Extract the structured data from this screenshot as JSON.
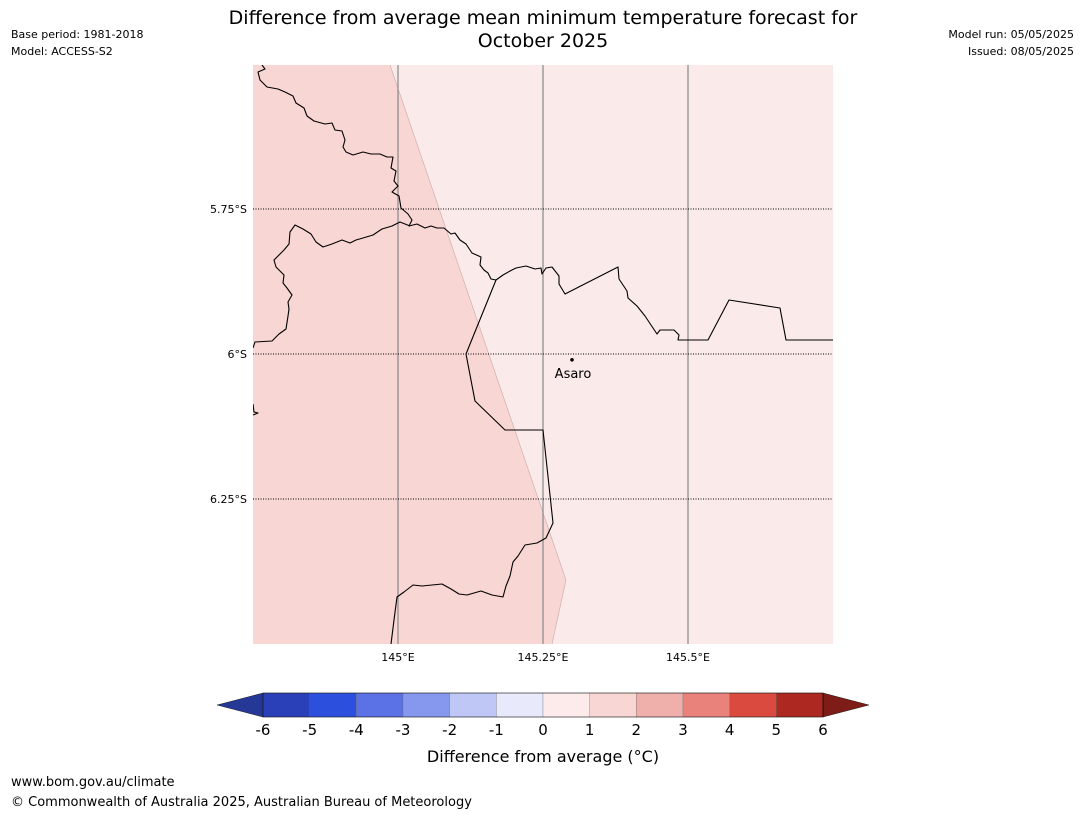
{
  "title_line1": "Difference from average mean minimum temperature forecast for",
  "title_line2": "October 2025",
  "base_period": "Base period: 1981-2018",
  "model": "Model: ACCESS-S2",
  "model_run": "Model run: 05/05/2025",
  "issued": "Issued: 08/05/2025",
  "map": {
    "lat_labels": [
      "5.75°S",
      "6°S",
      "6.25°S"
    ],
    "lon_labels": [
      "145°E",
      "145.25°E",
      "145.5°E"
    ],
    "place_name": "Asaro",
    "place_lon": 145.3,
    "place_lat": -6.01,
    "region_colors": {
      "one_to_two": "#f7d6d3",
      "zero_to_one": "#fbeaea"
    }
  },
  "colorbar": {
    "ticks": [
      "-6",
      "-5",
      "-4",
      "-3",
      "-2",
      "-1",
      "0",
      "1",
      "2",
      "3",
      "4",
      "5",
      "6"
    ],
    "colors": [
      "#263896",
      "#2a40b8",
      "#2d4fde",
      "#5b72e6",
      "#8697ee",
      "#bec7f5",
      "#e8eafc",
      "#fcebea",
      "#f7d6d4",
      "#efafaa",
      "#e8827a",
      "#db4a3e",
      "#ad2820",
      "#7e1d18"
    ],
    "label": "Difference from average (°C)"
  },
  "footer": {
    "url": "www.bom.gov.au/climate",
    "copyright": "© Commonwealth of Australia 2025, Australian Bureau of Meteorology"
  }
}
